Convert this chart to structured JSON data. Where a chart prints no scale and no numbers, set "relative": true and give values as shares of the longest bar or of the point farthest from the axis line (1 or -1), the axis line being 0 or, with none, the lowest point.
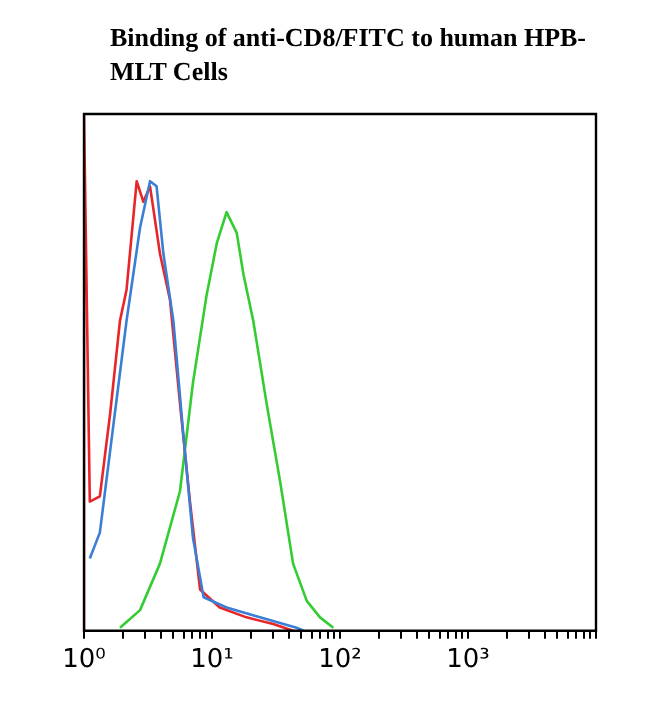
{
  "chart_data": {
    "type": "line",
    "title": "Binding of anti-CD8/FITC to human HPB-MLT Cells",
    "relative": true,
    "log": "x",
    "xlim": [
      1,
      10000
    ],
    "xticks": [
      {
        "value": 1,
        "label": "10⁰"
      },
      {
        "value": 2,
        "label": null
      },
      {
        "value": 3,
        "label": null
      },
      {
        "value": 4,
        "label": null
      },
      {
        "value": 5,
        "label": null
      },
      {
        "value": 6,
        "label": null
      },
      {
        "value": 7,
        "label": null
      },
      {
        "value": 8,
        "label": null
      },
      {
        "value": 9,
        "label": null
      },
      {
        "value": 10,
        "label": "10¹"
      },
      {
        "value": 20,
        "label": null
      },
      {
        "value": 30,
        "label": null
      },
      {
        "value": 40,
        "label": null
      },
      {
        "value": 50,
        "label": null
      },
      {
        "value": 60,
        "label": null
      },
      {
        "value": 70,
        "label": null
      },
      {
        "value": 80,
        "label": null
      },
      {
        "value": 90,
        "label": null
      },
      {
        "value": 100,
        "label": "10²"
      },
      {
        "value": 200,
        "label": null
      },
      {
        "value": 300,
        "label": null
      },
      {
        "value": 400,
        "label": null
      },
      {
        "value": 500,
        "label": null
      },
      {
        "value": 600,
        "label": null
      },
      {
        "value": 700,
        "label": null
      },
      {
        "value": 800,
        "label": null
      },
      {
        "value": 900,
        "label": null
      },
      {
        "value": 1000,
        "label": "10³"
      },
      {
        "value": 2000,
        "label": null
      },
      {
        "value": 3000,
        "label": null
      },
      {
        "value": 4000,
        "label": null
      },
      {
        "value": 5000,
        "label": null
      },
      {
        "value": 6000,
        "label": null
      },
      {
        "value": 7000,
        "label": null
      },
      {
        "value": 8000,
        "label": null
      },
      {
        "value": 9000,
        "label": null
      },
      {
        "value": 10000,
        "label": null
      }
    ],
    "grid": false,
    "legend": false,
    "marker": "none",
    "line_style": "solid",
    "series": [
      {
        "color": "#3a7fd5",
        "x": [
          1.11,
          1.33,
          1.7,
          2.15,
          2.74,
          3.28,
          3.69,
          4.17,
          4.99,
          5.97,
          7.1,
          8.6,
          13,
          23.7,
          45.8,
          51.7
        ],
        "values": [
          0.14,
          0.19,
          0.4,
          0.6,
          0.78,
          0.87,
          0.86,
          0.73,
          0.6,
          0.38,
          0.18,
          0.065,
          0.045,
          0.026,
          0.006,
          0
        ]
      },
      {
        "color": "#e8262a",
        "x": [
          1,
          1,
          1.11,
          1.33,
          1.6,
          1.91,
          2.15,
          2.58,
          2.91,
          3.28,
          3.92,
          4.7,
          5.62,
          6.73,
          8.06,
          11.5,
          18.6,
          30.1,
          43
        ],
        "values": [
          0,
          1,
          0.25,
          0.26,
          0.42,
          0.6,
          0.66,
          0.87,
          0.83,
          0.86,
          0.73,
          0.64,
          0.44,
          0.25,
          0.08,
          0.045,
          0.026,
          0.013,
          0
        ]
      },
      {
        "color": "#33cc33",
        "x": [
          1.91,
          2.74,
          3.92,
          5.62,
          7.1,
          9.08,
          10.9,
          13,
          15.6,
          17.6,
          21,
          26.7,
          34,
          43,
          55,
          69.8,
          88.7
        ],
        "values": [
          0.006,
          0.04,
          0.13,
          0.27,
          0.48,
          0.65,
          0.75,
          0.81,
          0.77,
          0.69,
          0.6,
          0.44,
          0.29,
          0.13,
          0.058,
          0.026,
          0.006
        ]
      }
    ]
  }
}
